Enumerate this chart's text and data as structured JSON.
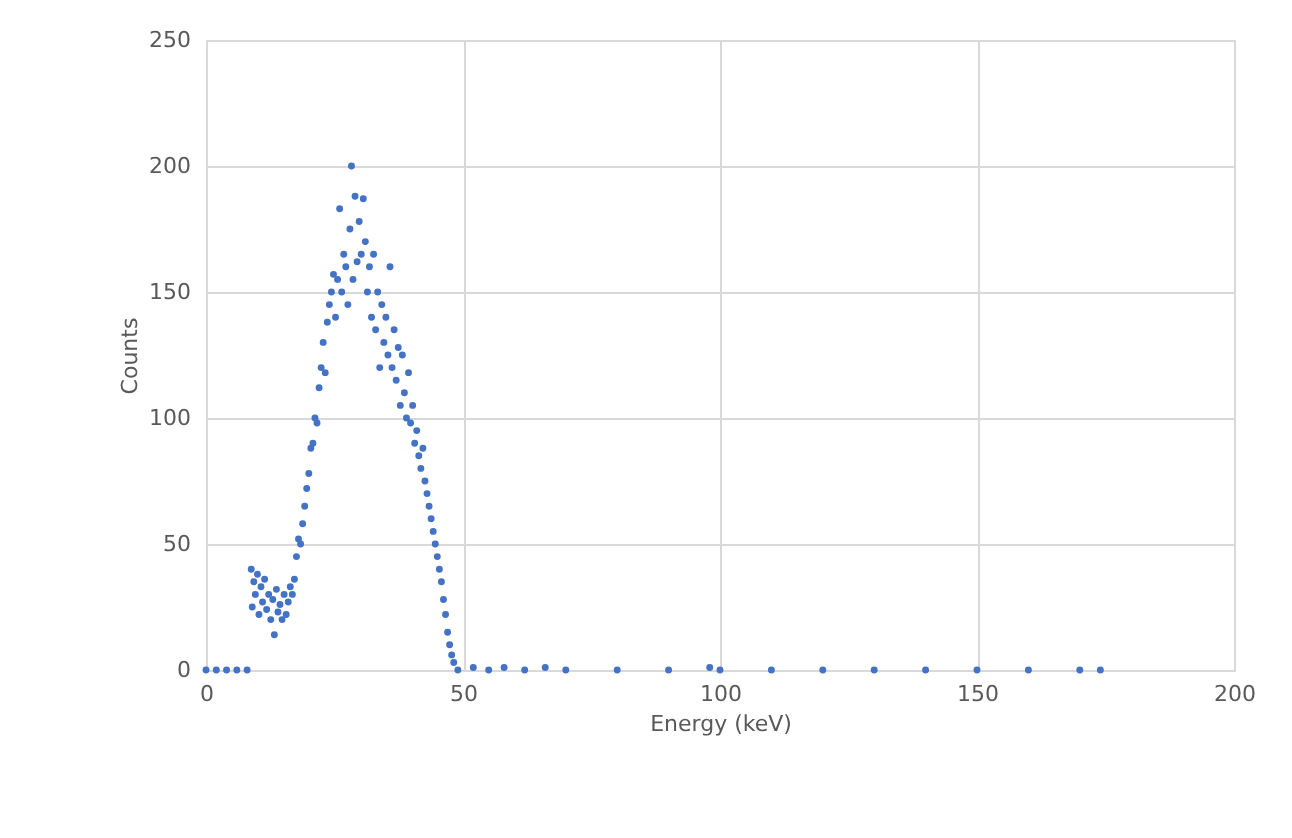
{
  "chart_data": {
    "type": "scatter",
    "xlabel": "Energy (keV)",
    "ylabel": "Counts",
    "xlim": [
      0,
      200
    ],
    "xticks": [
      0,
      50,
      100,
      150,
      200
    ],
    "ylim": [
      0,
      250
    ],
    "yticks": [
      0,
      50,
      100,
      150,
      200,
      250
    ],
    "grid": true,
    "marker": "circle",
    "series": [
      {
        "color": "#4472c4",
        "x": [
          0,
          2,
          4,
          6,
          8,
          8.8,
          9,
          9.3,
          9.6,
          10,
          10.3,
          10.7,
          11,
          11.4,
          11.8,
          12.2,
          12.6,
          13,
          13.3,
          13.7,
          14,
          14.4,
          14.8,
          15.2,
          15.6,
          16,
          16.4,
          16.8,
          17.2,
          17.6,
          18,
          18.4,
          18.8,
          19.2,
          19.6,
          20,
          20.4,
          20.8,
          21.2,
          21.6,
          22,
          22.4,
          22.8,
          23.2,
          23.6,
          24,
          24.4,
          24.8,
          25.2,
          25.6,
          26,
          26.4,
          26.8,
          27.2,
          27.6,
          28,
          28.3,
          28.6,
          29,
          29.4,
          29.8,
          30.2,
          30.6,
          31,
          31.4,
          31.8,
          32.2,
          32.6,
          33,
          33.4,
          33.8,
          34.2,
          34.6,
          35,
          35.4,
          35.8,
          36.2,
          36.6,
          37,
          37.4,
          37.8,
          38.2,
          38.6,
          39,
          39.4,
          39.8,
          40.2,
          40.6,
          41,
          41.4,
          41.8,
          42.2,
          42.6,
          43,
          43.4,
          43.8,
          44.2,
          44.6,
          45,
          45.4,
          45.8,
          46.2,
          46.6,
          47,
          47.4,
          47.8,
          48.2,
          49,
          52,
          55,
          58,
          62,
          66,
          70,
          80,
          90,
          98,
          100,
          110,
          120,
          130,
          140,
          150,
          160,
          170,
          174
        ],
        "values": [
          0,
          0,
          0,
          0,
          0,
          40,
          25,
          35,
          30,
          38,
          22,
          33,
          27,
          36,
          24,
          30,
          20,
          28,
          14,
          32,
          23,
          26,
          20,
          30,
          22,
          27,
          33,
          30,
          36,
          45,
          52,
          50,
          58,
          65,
          72,
          78,
          88,
          90,
          100,
          98,
          112,
          120,
          130,
          118,
          138,
          145,
          150,
          157,
          140,
          155,
          183,
          150,
          165,
          160,
          145,
          175,
          200,
          155,
          188,
          162,
          178,
          165,
          187,
          170,
          150,
          160,
          140,
          165,
          135,
          150,
          120,
          145,
          130,
          140,
          125,
          160,
          120,
          135,
          115,
          128,
          105,
          125,
          110,
          100,
          118,
          98,
          105,
          90,
          95,
          85,
          80,
          88,
          75,
          70,
          65,
          60,
          55,
          50,
          45,
          40,
          35,
          28,
          22,
          15,
          10,
          6,
          3,
          0,
          1,
          0,
          1,
          0,
          1,
          0,
          0,
          0,
          1,
          0,
          0,
          0,
          0,
          0,
          0,
          0,
          0,
          0
        ]
      }
    ]
  }
}
